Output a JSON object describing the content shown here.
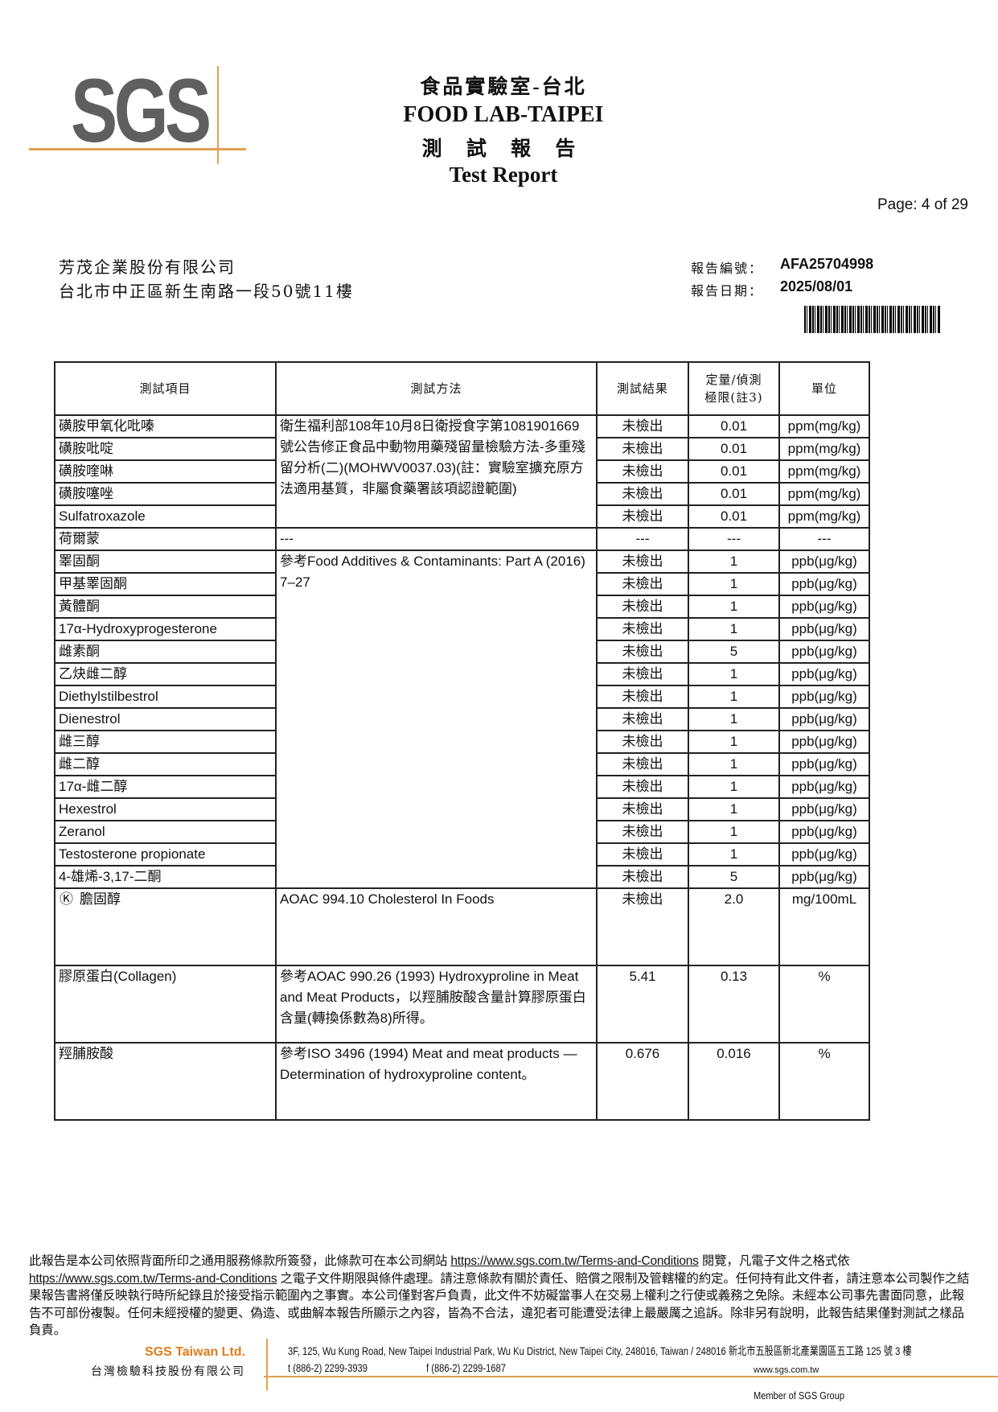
{
  "header": {
    "logo": "SGS",
    "lab_zh": "食品實驗室-台北",
    "lab_en": "FOOD LAB-TAIPEI",
    "report_zh": "測 試 報 告",
    "report_en": "Test Report",
    "page": "Page: 4 of 29",
    "accent_color": "#e0a050"
  },
  "client": {
    "name": "芳茂企業股份有限公司",
    "address": "台北市中正區新生南路一段50號11樓"
  },
  "report_meta": {
    "number_label": "報告編號：",
    "number": "AFA25704998",
    "date_label": "報告日期：",
    "date": "2025/08/01"
  },
  "table": {
    "headers": [
      "測試項目",
      "測試方法",
      "測試結果",
      "定量/偵測\n極限(註3)",
      "單位"
    ],
    "group1_method": "衛生福利部108年10月8日衛授食字第1081901669號公告修正食品中動物用藥殘留量檢驗方法-多重殘留分析(二)(MOHWV0037.03)(註：實驗室擴充原方法適用基質，非屬食藥署該項認證範圍)",
    "group1": [
      {
        "item": "磺胺甲氧化吡嗪",
        "result": "未檢出",
        "limit": "0.01",
        "unit": "ppm(mg/kg)"
      },
      {
        "item": "磺胺吡啶",
        "result": "未檢出",
        "limit": "0.01",
        "unit": "ppm(mg/kg)"
      },
      {
        "item": "磺胺喹啉",
        "result": "未檢出",
        "limit": "0.01",
        "unit": "ppm(mg/kg)"
      },
      {
        "item": "磺胺噻唑",
        "result": "未檢出",
        "limit": "0.01",
        "unit": "ppm(mg/kg)"
      },
      {
        "item": "Sulfatroxazole",
        "result": "未檢出",
        "limit": "0.01",
        "unit": "ppm(mg/kg)"
      }
    ],
    "hormone_header": {
      "item": "荷爾蒙",
      "method": "---",
      "result": "---",
      "limit": "---",
      "unit": "---"
    },
    "group2_method": "參考Food Additives & Contaminants: Part A (2016) 7–27",
    "group2": [
      {
        "item": "睪固酮",
        "result": "未檢出",
        "limit": "1",
        "unit": "ppb(μg/kg)"
      },
      {
        "item": "甲基睪固酮",
        "result": "未檢出",
        "limit": "1",
        "unit": "ppb(μg/kg)"
      },
      {
        "item": "黃體酮",
        "result": "未檢出",
        "limit": "1",
        "unit": "ppb(μg/kg)"
      },
      {
        "item": "17α-Hydroxyprogesterone",
        "result": "未檢出",
        "limit": "1",
        "unit": "ppb(μg/kg)"
      },
      {
        "item": "雌素酮",
        "result": "未檢出",
        "limit": "5",
        "unit": "ppb(μg/kg)"
      },
      {
        "item": "乙炔雌二醇",
        "result": "未檢出",
        "limit": "1",
        "unit": "ppb(μg/kg)"
      },
      {
        "item": "Diethylstilbestrol",
        "result": "未檢出",
        "limit": "1",
        "unit": "ppb(μg/kg)"
      },
      {
        "item": "Dienestrol",
        "result": "未檢出",
        "limit": "1",
        "unit": "ppb(μg/kg)"
      },
      {
        "item": "雌三醇",
        "result": "未檢出",
        "limit": "1",
        "unit": "ppb(μg/kg)"
      },
      {
        "item": "雌二醇",
        "result": "未檢出",
        "limit": "1",
        "unit": "ppb(μg/kg)"
      },
      {
        "item": "17α-雌二醇",
        "result": "未檢出",
        "limit": "1",
        "unit": "ppb(μg/kg)"
      },
      {
        "item": "Hexestrol",
        "result": "未檢出",
        "limit": "1",
        "unit": "ppb(μg/kg)"
      },
      {
        "item": "Zeranol",
        "result": "未檢出",
        "limit": "1",
        "unit": "ppb(μg/kg)"
      },
      {
        "item": "Testosterone propionate",
        "result": "未檢出",
        "limit": "1",
        "unit": "ppb(μg/kg)"
      },
      {
        "item": "4-雄烯-3,17-二酮",
        "result": "未檢出",
        "limit": "5",
        "unit": "ppb(μg/kg)"
      }
    ],
    "others": [
      {
        "mark": "Ⓚ",
        "item": "膽固醇",
        "method": "AOAC 994.10 Cholesterol In Foods",
        "result": "未檢出",
        "limit": "2.0",
        "unit": "mg/100mL"
      },
      {
        "mark": "",
        "item": "膠原蛋白(Collagen)",
        "method": "參考AOAC 990.26 (1993) Hydroxyproline in Meat and Meat Products，以羥脯胺酸含量計算膠原蛋白含量(轉換係數為8)所得。",
        "result": "5.41",
        "limit": "0.13",
        "unit": "%"
      },
      {
        "mark": "",
        "item": "羥脯胺酸",
        "method": "參考ISO 3496 (1994) Meat and meat products — Determination of hydroxyproline content。",
        "result": "0.676",
        "limit": "0.016",
        "unit": "%"
      }
    ]
  },
  "footer": {
    "disclaimer_1": "此報告是本公司依照背面所印之通用服務條款所簽發，此條款可在本公司網站 ",
    "link": "https://www.sgs.com.tw/Terms-and-Conditions",
    "disclaimer_2": " 閱覽，凡電子文件之格式依",
    "disclaimer_3": " 之電子文件期限與條件處理。請注意條款有關於責任、賠償之限制及管轄權的約定。任何持有此文件者，請注意本公司製作之結果報告書將僅反映執行時所紀錄且於接受指示範圍內之事實。本公司僅對客戶負責，此文件不妨礙當事人在交易上權利之行使或義務之免除。未經本公司事先書面同意，此報告不可部份複製。任何未經授權的變更、偽造、或曲解本報告所顯示之內容，皆為不合法，違犯者可能遭受法律上最嚴厲之追訴。除非另有說明，此報告結果僅對測試之樣品負責。",
    "company_en": "SGS Taiwan Ltd.",
    "company_zh": "台灣檢驗科技股份有限公司",
    "address": "3F, 125, Wu Kung Road, New Taipei Industrial Park, Wu Ku District, New Taipei City, 248016, Taiwan / 248016 新北市五股區新北產業園區五工路 125 號 3 樓",
    "tel": "t (886-2) 2299-3939",
    "fax": "f (886-2) 2299-1687",
    "web": "www.sgs.com.tw",
    "member": "Member of SGS Group",
    "brand_color": "#e07b1a"
  }
}
